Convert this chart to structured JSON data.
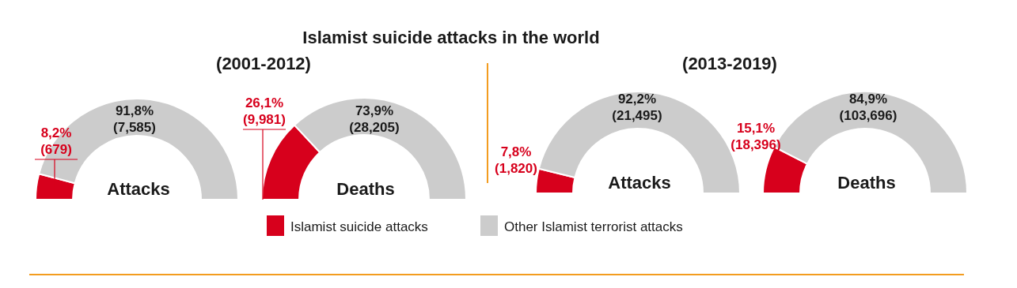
{
  "chart_data": [
    {
      "type": "donut",
      "subtitle": "(2001-2012)",
      "xlabel": "Attacks",
      "categories": [
        "Islamist suicide attacks",
        "Other Islamist terrorist attacks"
      ],
      "values": [
        679,
        7585
      ],
      "colors": [
        "#d7001c",
        "#cccccc"
      ],
      "value_labels": [
        "8,2%\n(679)",
        "91,8%\n(7,585)"
      ],
      "legend": "bottom"
    },
    {
      "type": "donut",
      "title": "Islamist suicide attacks in the world",
      "xlabel": "Deaths",
      "categories": [
        null,
        null
      ],
      "values": [
        9981,
        28205
      ],
      "colors": [
        "#d7001c",
        "#cccccc"
      ],
      "value_labels": [
        "26,1%\n(9,981)",
        "73,9%\n(28,205)"
      ]
    },
    {
      "type": "donut",
      "subtitle": "(2013-2019)",
      "xlabel": "Attacks",
      "categories": [
        null,
        null
      ],
      "values": [
        1820,
        21495
      ],
      "colors": [
        "#d7001c",
        "#cccccc"
      ],
      "value_labels": [
        "7,8%\n(1,820)",
        "92,2%\n(21,495)"
      ]
    },
    {
      "type": "donut",
      "xlabel": "Deaths",
      "categories": [
        null,
        null
      ],
      "values": [
        18396,
        103696
      ],
      "colors": [
        "#d7001c",
        "#cccccc"
      ],
      "value_labels": [
        "15,1%\n(18,396)",
        "84,9%\n(103,696)"
      ]
    }
  ]
}
